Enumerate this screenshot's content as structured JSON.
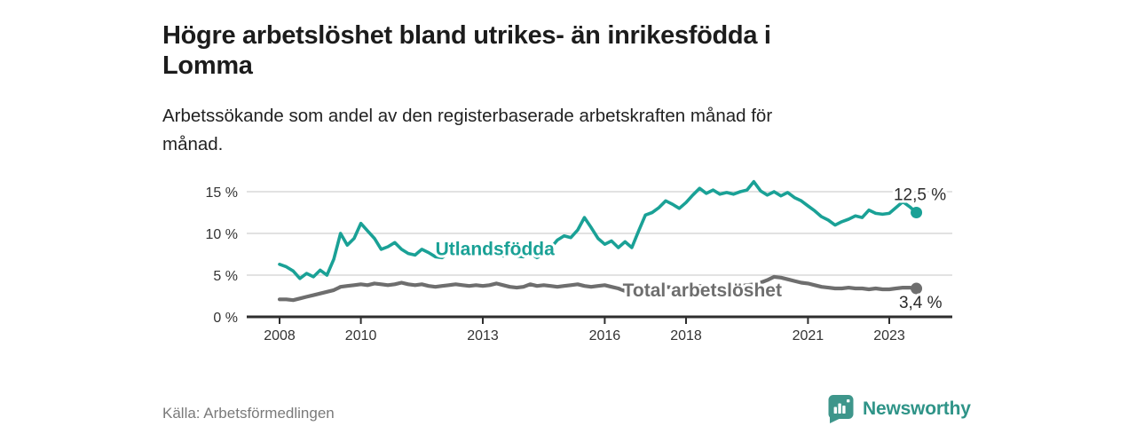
{
  "header": {
    "title": "Högre arbetslöshet bland utrikes- än inrikesfödda i\nLomma",
    "subtitle": "Arbetssökande som andel av den registerbaserade arbetskraften månad för\nmånad."
  },
  "footer": {
    "source": "Källa: Arbetsförmedlingen",
    "brand": "Newsworthy"
  },
  "colors": {
    "foreign_born_line": "#1aa196",
    "total_line": "#6e6e6e",
    "gridline": "#d9d9d9",
    "axis": "#2e2e2e",
    "brand_teal": "#3e968b"
  },
  "chart_data": {
    "type": "line",
    "title": "",
    "xlabel": "",
    "ylabel": "",
    "x_start_year": 2008,
    "x_interval_years": 0.16667,
    "x_ticks": [
      2008,
      2010,
      2013,
      2016,
      2018,
      2021,
      2023
    ],
    "y_gridlines": [
      5,
      10,
      15
    ],
    "ylim": [
      0,
      18
    ],
    "y_axis_labels": [
      {
        "value": 0,
        "text": "0 %"
      },
      {
        "value": 5,
        "text": "5 %"
      },
      {
        "value": 10,
        "text": "10 %"
      },
      {
        "value": 15,
        "text": "15 %"
      }
    ],
    "legend_position": "inline-labels",
    "grid": true,
    "series": [
      {
        "name": "Utlandsfödda",
        "color": "#1aa196",
        "width": 3.6,
        "end_value": 12.5,
        "label": {
          "text": "Utlandsfödda",
          "x": 2013.3,
          "y": 7.4
        },
        "end_label": {
          "text": "12,5 %",
          "x": 2024.4,
          "y": 14.0
        },
        "values": [
          6.3,
          6.0,
          5.5,
          4.6,
          5.2,
          4.8,
          5.6,
          5.0,
          6.9,
          10.0,
          8.6,
          9.4,
          11.2,
          10.3,
          9.4,
          8.1,
          8.4,
          8.9,
          8.1,
          7.6,
          7.4,
          8.1,
          7.7,
          7.2,
          7.1,
          7.7,
          8.2,
          8.4,
          7.9,
          7.8,
          7.9,
          7.7,
          7.5,
          7.3,
          7.6,
          7.3,
          7.2,
          7.6,
          7.1,
          7.5,
          8.2,
          9.2,
          9.7,
          9.5,
          10.4,
          11.9,
          10.7,
          9.4,
          8.7,
          9.1,
          8.3,
          9.0,
          8.3,
          10.3,
          12.2,
          12.5,
          13.1,
          13.9,
          13.5,
          13.0,
          13.7,
          14.6,
          15.4,
          14.8,
          15.2,
          14.7,
          14.9,
          14.7,
          15.0,
          15.2,
          16.2,
          15.1,
          14.6,
          15.0,
          14.5,
          14.9,
          14.3,
          13.9,
          13.3,
          12.7,
          12.0,
          11.6,
          11.0,
          11.4,
          11.7,
          12.1,
          11.9,
          12.8,
          12.4,
          12.3,
          12.4,
          13.1,
          13.8,
          13.2,
          12.5
        ]
      },
      {
        "name": "Total arbetslöshet",
        "color": "#6e6e6e",
        "width": 4.2,
        "end_value": 3.4,
        "label": {
          "text": "Total arbetslöshet",
          "x": 2018.4,
          "y": 2.45
        },
        "end_label": {
          "text": "3,4 %",
          "x": 2024.3,
          "y": 1.05
        },
        "values": [
          2.1,
          2.1,
          2.0,
          2.2,
          2.4,
          2.6,
          2.8,
          3.0,
          3.2,
          3.6,
          3.7,
          3.8,
          3.9,
          3.8,
          4.0,
          3.9,
          3.8,
          3.9,
          4.1,
          3.9,
          3.8,
          3.9,
          3.7,
          3.6,
          3.7,
          3.8,
          3.9,
          3.8,
          3.7,
          3.8,
          3.7,
          3.8,
          4.0,
          3.8,
          3.6,
          3.5,
          3.6,
          3.9,
          3.7,
          3.8,
          3.7,
          3.6,
          3.7,
          3.8,
          3.9,
          3.7,
          3.6,
          3.7,
          3.8,
          3.6,
          3.4,
          3.1,
          2.9,
          3.0,
          3.2,
          3.4,
          3.5,
          3.6,
          3.5,
          3.4,
          3.5,
          3.6,
          3.7,
          3.6,
          3.5,
          3.6,
          3.5,
          3.6,
          3.7,
          3.8,
          3.9,
          4.1,
          4.4,
          4.8,
          4.7,
          4.5,
          4.3,
          4.1,
          4.0,
          3.8,
          3.6,
          3.5,
          3.4,
          3.4,
          3.5,
          3.4,
          3.4,
          3.3,
          3.4,
          3.3,
          3.3,
          3.4,
          3.5,
          3.5,
          3.4
        ]
      }
    ]
  }
}
